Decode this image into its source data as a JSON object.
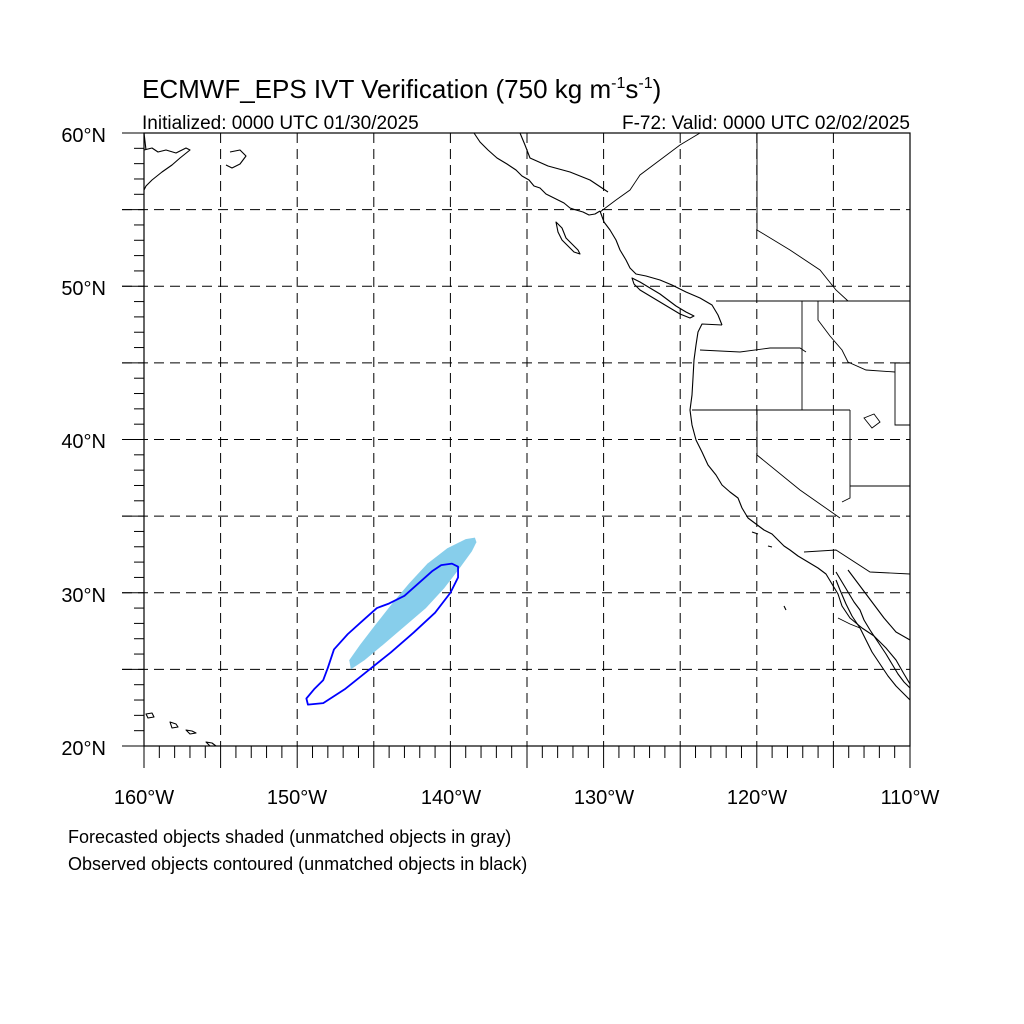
{
  "title": {
    "main": "ECMWF_EPS IVT Verification (750 kg m",
    "sup1": "-1",
    "mid": "s",
    "sup2": "-1",
    "end": ")"
  },
  "initialized": "Initialized: 0000 UTC 01/30/2025",
  "valid": "F-72: Valid: 0000 UTC 02/02/2025",
  "axes": {
    "lat_labels": [
      "60°N",
      "50°N",
      "40°N",
      "30°N",
      "20°N"
    ],
    "lon_labels": [
      "160°W",
      "150°W",
      "140°W",
      "130°W",
      "120°W",
      "110°W"
    ],
    "lon_range": [
      -160,
      -110
    ],
    "lat_range": [
      20,
      60
    ],
    "grid_spacing_deg": 5,
    "grid": true,
    "grid_style": "dashed"
  },
  "legend": {
    "line1": "Forecasted objects shaded (unmatched objects in gray)",
    "line2": "Observed objects contoured (unmatched objects in black)"
  },
  "objects": {
    "forecast": {
      "type": "shaded",
      "color": "#87CEEB",
      "points": [
        [
          -146.5,
          25.0
        ],
        [
          -145.6,
          25.6
        ],
        [
          -144.4,
          26.6
        ],
        [
          -143.0,
          27.8
        ],
        [
          -141.6,
          29.0
        ],
        [
          -140.4,
          30.3
        ],
        [
          -139.4,
          31.6
        ],
        [
          -138.6,
          32.7
        ],
        [
          -138.3,
          33.3
        ],
        [
          -138.4,
          33.6
        ],
        [
          -139.0,
          33.5
        ],
        [
          -140.2,
          32.9
        ],
        [
          -141.5,
          31.9
        ],
        [
          -142.7,
          30.6
        ],
        [
          -143.8,
          29.3
        ],
        [
          -144.9,
          27.9
        ],
        [
          -145.9,
          26.6
        ],
        [
          -146.6,
          25.6
        ]
      ]
    },
    "observed": {
      "type": "contour",
      "color": "#0000FF",
      "points": [
        [
          -149.3,
          22.7
        ],
        [
          -148.3,
          22.8
        ],
        [
          -146.9,
          23.7
        ],
        [
          -145.4,
          24.9
        ],
        [
          -143.9,
          26.1
        ],
        [
          -142.4,
          27.4
        ],
        [
          -141.0,
          28.7
        ],
        [
          -140.0,
          30.0
        ],
        [
          -139.5,
          31.0
        ],
        [
          -139.5,
          31.7
        ],
        [
          -139.9,
          31.9
        ],
        [
          -140.6,
          31.8
        ],
        [
          -141.2,
          31.4
        ],
        [
          -142.1,
          30.6
        ],
        [
          -143.0,
          29.8
        ],
        [
          -144.0,
          29.3
        ],
        [
          -144.8,
          29.0
        ],
        [
          -145.7,
          28.2
        ],
        [
          -146.7,
          27.3
        ],
        [
          -147.6,
          26.3
        ],
        [
          -148.0,
          25.1
        ],
        [
          -148.3,
          24.3
        ],
        [
          -148.9,
          23.7
        ],
        [
          -149.4,
          23.1
        ]
      ]
    }
  },
  "colors": {
    "forecast_fill": "#87CEEB",
    "observed_line": "#0000FF",
    "map_lines": "#000000"
  }
}
